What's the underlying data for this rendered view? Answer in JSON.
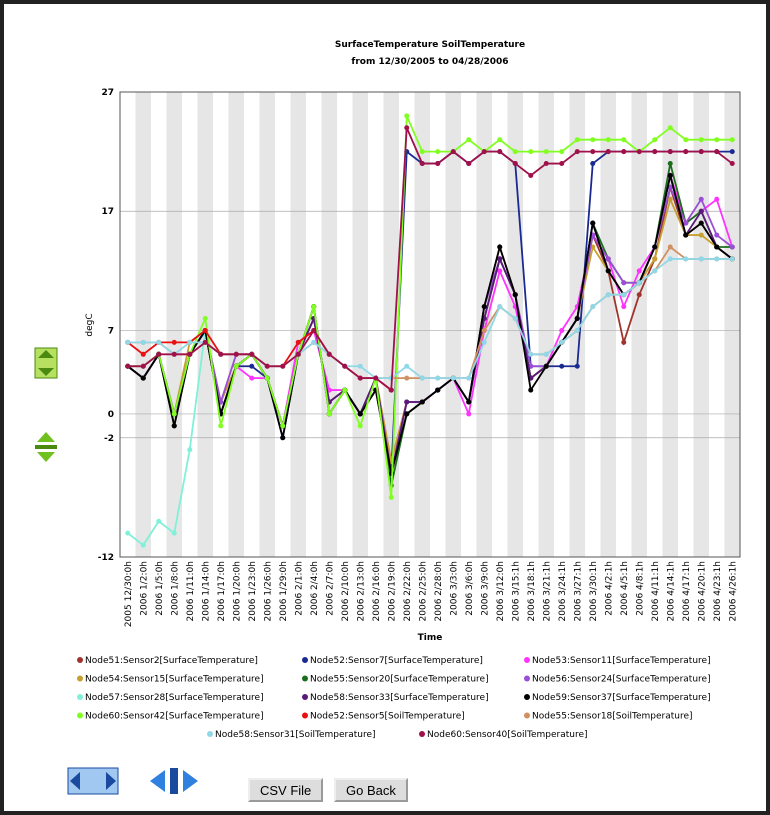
{
  "chart_data": {
    "type": "line",
    "title": "SurfaceTemperature SoilTemperature",
    "subtitle": "from 12/30/2005 to 04/28/2006",
    "y_label": "degC",
    "x_label": "Time",
    "categories": [
      "2005 12/30:0h",
      "2006 1/2:0h",
      "2006 1/5:0h",
      "2006 1/8:0h",
      "2006 1/11:0h",
      "2006 1/14:0h",
      "2006 1/17:0h",
      "2006 1/20:0h",
      "2006 1/23:0h",
      "2006 1/26:0h",
      "2006 1/29:0h",
      "2006 2/1:0h",
      "2006 2/4:0h",
      "2006 2/7:0h",
      "2006 2/10:0h",
      "2006 2/13:0h",
      "2006 2/16:0h",
      "2006 2/19:0h",
      "2006 2/22:0h",
      "2006 2/25:0h",
      "2006 2/28:0h",
      "2006 3/3:0h",
      "2006 3/6:0h",
      "2006 3/9:0h",
      "2006 3/12:0h",
      "2006 3/15:1h",
      "2006 3/18:1h",
      "2006 3/21:1h",
      "2006 3/24:1h",
      "2006 3/27:1h",
      "2006 3/30:1h",
      "2006 4/2:1h",
      "2006 4/5:1h",
      "2006 4/8:1h",
      "2006 4/11:1h",
      "2006 4/14:1h",
      "2006 4/17:1h",
      "2006 4/20:1h",
      "2006 4/23:1h",
      "2006 4/26:1h"
    ],
    "ylim": [
      -12,
      27
    ],
    "yticks": [
      -12,
      -2,
      0,
      7,
      17,
      27
    ],
    "grid": true,
    "series": [
      {
        "name": "Node51:Sensor2[SurfaceTemperature]",
        "color": "#a0342c",
        "values": [
          4,
          3,
          5,
          -1,
          5,
          7,
          0,
          4,
          5,
          3,
          -1,
          5,
          8,
          1,
          2,
          0,
          2,
          -5,
          0,
          1,
          2,
          3,
          1,
          9,
          14,
          10,
          3,
          4,
          6,
          8,
          15,
          12,
          6,
          10,
          13,
          19,
          15,
          16,
          14,
          13
        ]
      },
      {
        "name": "Node52:Sensor7[SurfaceTemperature]",
        "color": "#1a2a90",
        "values": [
          4,
          3,
          5,
          0,
          5,
          7,
          0,
          4,
          4,
          3,
          -2,
          5,
          8,
          1,
          2,
          0,
          3,
          -5,
          22,
          21,
          21,
          22,
          21,
          22,
          22,
          21,
          4,
          4,
          4,
          4,
          21,
          22,
          22,
          22,
          22,
          22,
          22,
          22,
          22,
          22
        ]
      },
      {
        "name": "Node53:Sensor11[SurfaceTemperature]",
        "color": "#ff33ff",
        "values": [
          4,
          4,
          5,
          0,
          5,
          7,
          1,
          4,
          3,
          3,
          -1,
          6,
          7,
          2,
          2,
          0,
          3,
          -4,
          1,
          1,
          2,
          3,
          0,
          7,
          12,
          9,
          3,
          4,
          7,
          9,
          15,
          13,
          9,
          12,
          14,
          20,
          16,
          17,
          18,
          14
        ]
      },
      {
        "name": "Node54:Sensor15[SurfaceTemperature]",
        "color": "#c8a030",
        "values": [
          4,
          4,
          5,
          0,
          6,
          7,
          1,
          4,
          5,
          3,
          -1,
          5,
          8,
          1,
          2,
          0,
          3,
          -4,
          1,
          1,
          2,
          3,
          1,
          8,
          13,
          10,
          3,
          4,
          6,
          8,
          14,
          12,
          10,
          11,
          13,
          18,
          15,
          15,
          14,
          13
        ]
      },
      {
        "name": "Node55:Sensor20[SurfaceTemperature]",
        "color": "#1b6e1b",
        "values": [
          4,
          3,
          5,
          -1,
          5,
          7,
          0,
          4,
          5,
          3,
          -1,
          5,
          9,
          0,
          2,
          0,
          3,
          -6,
          0,
          1,
          2,
          3,
          1,
          8,
          13,
          10,
          3,
          4,
          6,
          8,
          16,
          13,
          11,
          11,
          14,
          21,
          16,
          17,
          14,
          14
        ]
      },
      {
        "name": "Node56:Sensor24[SurfaceTemperature]",
        "color": "#9a4fd6",
        "values": [
          4,
          4,
          5,
          0,
          5,
          7,
          1,
          5,
          5,
          3,
          -1,
          5,
          8,
          1,
          2,
          0,
          2,
          -5,
          1,
          1,
          2,
          3,
          1,
          9,
          13,
          10,
          4,
          4,
          6,
          8,
          15,
          13,
          11,
          11,
          14,
          19,
          16,
          18,
          15,
          14
        ]
      },
      {
        "name": "Node57:Sensor28[SurfaceTemperature]",
        "color": "#80f0d8",
        "values": [
          -10,
          -11,
          -9,
          -10,
          -3,
          7,
          null,
          null,
          null,
          null,
          null,
          null,
          null,
          null,
          null,
          null,
          null,
          null,
          null,
          null,
          null,
          null,
          null,
          null,
          null,
          null,
          null,
          null,
          null,
          null,
          null,
          null,
          null,
          null,
          null,
          null,
          null,
          null,
          null,
          null
        ]
      },
      {
        "name": "Node58:Sensor33[SurfaceTemperature]",
        "color": "#5a1a7a",
        "values": [
          4,
          3,
          5,
          0,
          5,
          7,
          0,
          4,
          5,
          3,
          -1,
          5,
          8,
          1,
          2,
          0,
          3,
          -5,
          1,
          1,
          2,
          3,
          1,
          8,
          13,
          10,
          3,
          4,
          6,
          8,
          16,
          12,
          10,
          11,
          14,
          20,
          15,
          17,
          14,
          13
        ]
      },
      {
        "name": "Node59:Sensor37[SurfaceTemperature]",
        "color": "#000000",
        "values": [
          4,
          3,
          5,
          -1,
          5,
          7,
          0,
          4,
          5,
          3,
          -2,
          5,
          9,
          0,
          2,
          0,
          2,
          -5,
          0,
          1,
          2,
          3,
          1,
          9,
          14,
          10,
          2,
          4,
          6,
          8,
          16,
          12,
          10,
          11,
          14,
          20,
          15,
          16,
          14,
          13
        ]
      },
      {
        "name": "Node60:Sensor42[SurfaceTemperature]",
        "color": "#80ff20",
        "values": [
          4,
          4,
          5,
          0,
          5,
          8,
          -1,
          4,
          5,
          3,
          -1,
          5,
          9,
          0,
          2,
          -1,
          3,
          -7,
          25,
          22,
          22,
          22,
          23,
          22,
          23,
          22,
          22,
          22,
          22,
          23,
          23,
          23,
          23,
          22,
          23,
          24,
          23,
          23,
          23,
          23
        ]
      },
      {
        "name": "Node52:Sensor5[SoilTemperature]",
        "color": "#e81010",
        "values": [
          6,
          5,
          6,
          6,
          6,
          7,
          5,
          5,
          5,
          4,
          4,
          6,
          7,
          5,
          4,
          3,
          3,
          2,
          null,
          null,
          null,
          null,
          null,
          null,
          null,
          null,
          null,
          null,
          null,
          null,
          null,
          null,
          null,
          null,
          null,
          null,
          null,
          null,
          null,
          null
        ]
      },
      {
        "name": "Node55:Sensor18[SoilTemperature]",
        "color": "#d09060",
        "values": [
          6,
          6,
          6,
          5,
          5,
          6,
          5,
          5,
          5,
          4,
          4,
          5,
          6,
          5,
          4,
          3,
          3,
          3,
          3,
          3,
          3,
          3,
          3,
          7,
          9,
          8,
          5,
          5,
          6,
          7,
          9,
          10,
          10,
          11,
          12,
          14,
          13,
          13,
          13,
          13
        ]
      },
      {
        "name": "Node58:Sensor31[SoilTemperature]",
        "color": "#90d8e8",
        "values": [
          6,
          6,
          6,
          5,
          6,
          6,
          5,
          5,
          5,
          4,
          4,
          5,
          6,
          5,
          4,
          4,
          3,
          3,
          4,
          3,
          3,
          3,
          3,
          6,
          9,
          8,
          5,
          5,
          6,
          7,
          9,
          10,
          10,
          11,
          12,
          13,
          13,
          13,
          13,
          13
        ]
      },
      {
        "name": "Node60:Sensor40[SoilTemperature]",
        "color": "#a0104a",
        "values": [
          4,
          4,
          5,
          5,
          5,
          6,
          5,
          5,
          5,
          4,
          4,
          5,
          7,
          5,
          4,
          3,
          3,
          2,
          24,
          21,
          21,
          22,
          21,
          22,
          22,
          21,
          20,
          21,
          21,
          22,
          22,
          22,
          22,
          22,
          22,
          22,
          22,
          22,
          22,
          21
        ]
      }
    ]
  },
  "buttons": [
    "CSV File",
    "Go Back"
  ]
}
